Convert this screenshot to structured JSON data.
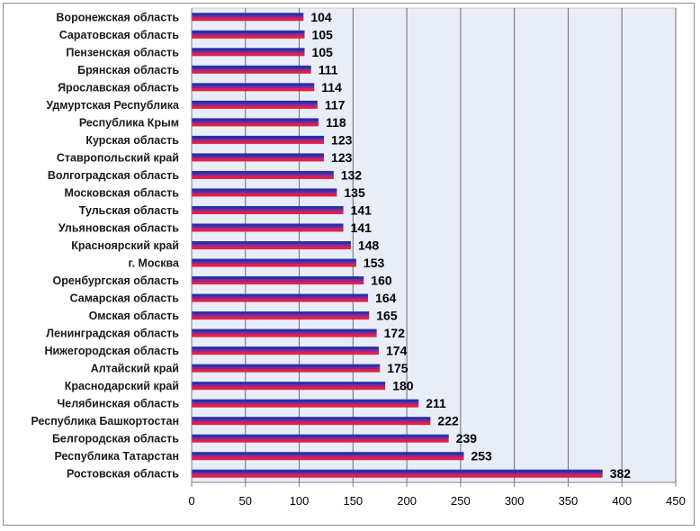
{
  "chart_data": {
    "type": "bar",
    "orientation": "horizontal",
    "title": "",
    "xlabel": "",
    "ylabel": "",
    "categories": [
      "Воронежская область",
      "Саратовская область",
      "Пензенская область",
      "Брянская область",
      "Ярославская область",
      "Удмуртская Республика",
      "Республика Крым",
      "Курская область",
      "Ставропольский край",
      "Волгоградская область",
      "Московская область",
      "Тульская область",
      "Ульяновская область",
      "Красноярский край",
      "г. Москва",
      "Оренбургская область",
      "Самарская область",
      "Омская область",
      "Ленинградская область",
      "Нижегородская область",
      "Алтайский край",
      "Краснодарский край",
      "Челябинская область",
      "Республика Башкортостан",
      "Белгородская область",
      "Республика Татарстан",
      "Ростовская область"
    ],
    "values": [
      104,
      105,
      105,
      111,
      114,
      117,
      118,
      123,
      123,
      132,
      135,
      141,
      141,
      148,
      153,
      160,
      164,
      165,
      172,
      174,
      175,
      180,
      211,
      222,
      239,
      253,
      382
    ],
    "xlim": [
      0,
      450
    ],
    "xticks": [
      "0",
      "50",
      "100",
      "150",
      "200",
      "250",
      "300",
      "350",
      "400",
      "450"
    ],
    "grid": true,
    "legend": "none",
    "data_labels": true,
    "colors": {
      "plot_background": "#e9edf7",
      "gridline": "#6b6b6b",
      "bar_stripe_1": "#2a2fa6",
      "bar_stripe_2": "#7a2aa0",
      "bar_stripe_3": "#e0204a"
    }
  }
}
